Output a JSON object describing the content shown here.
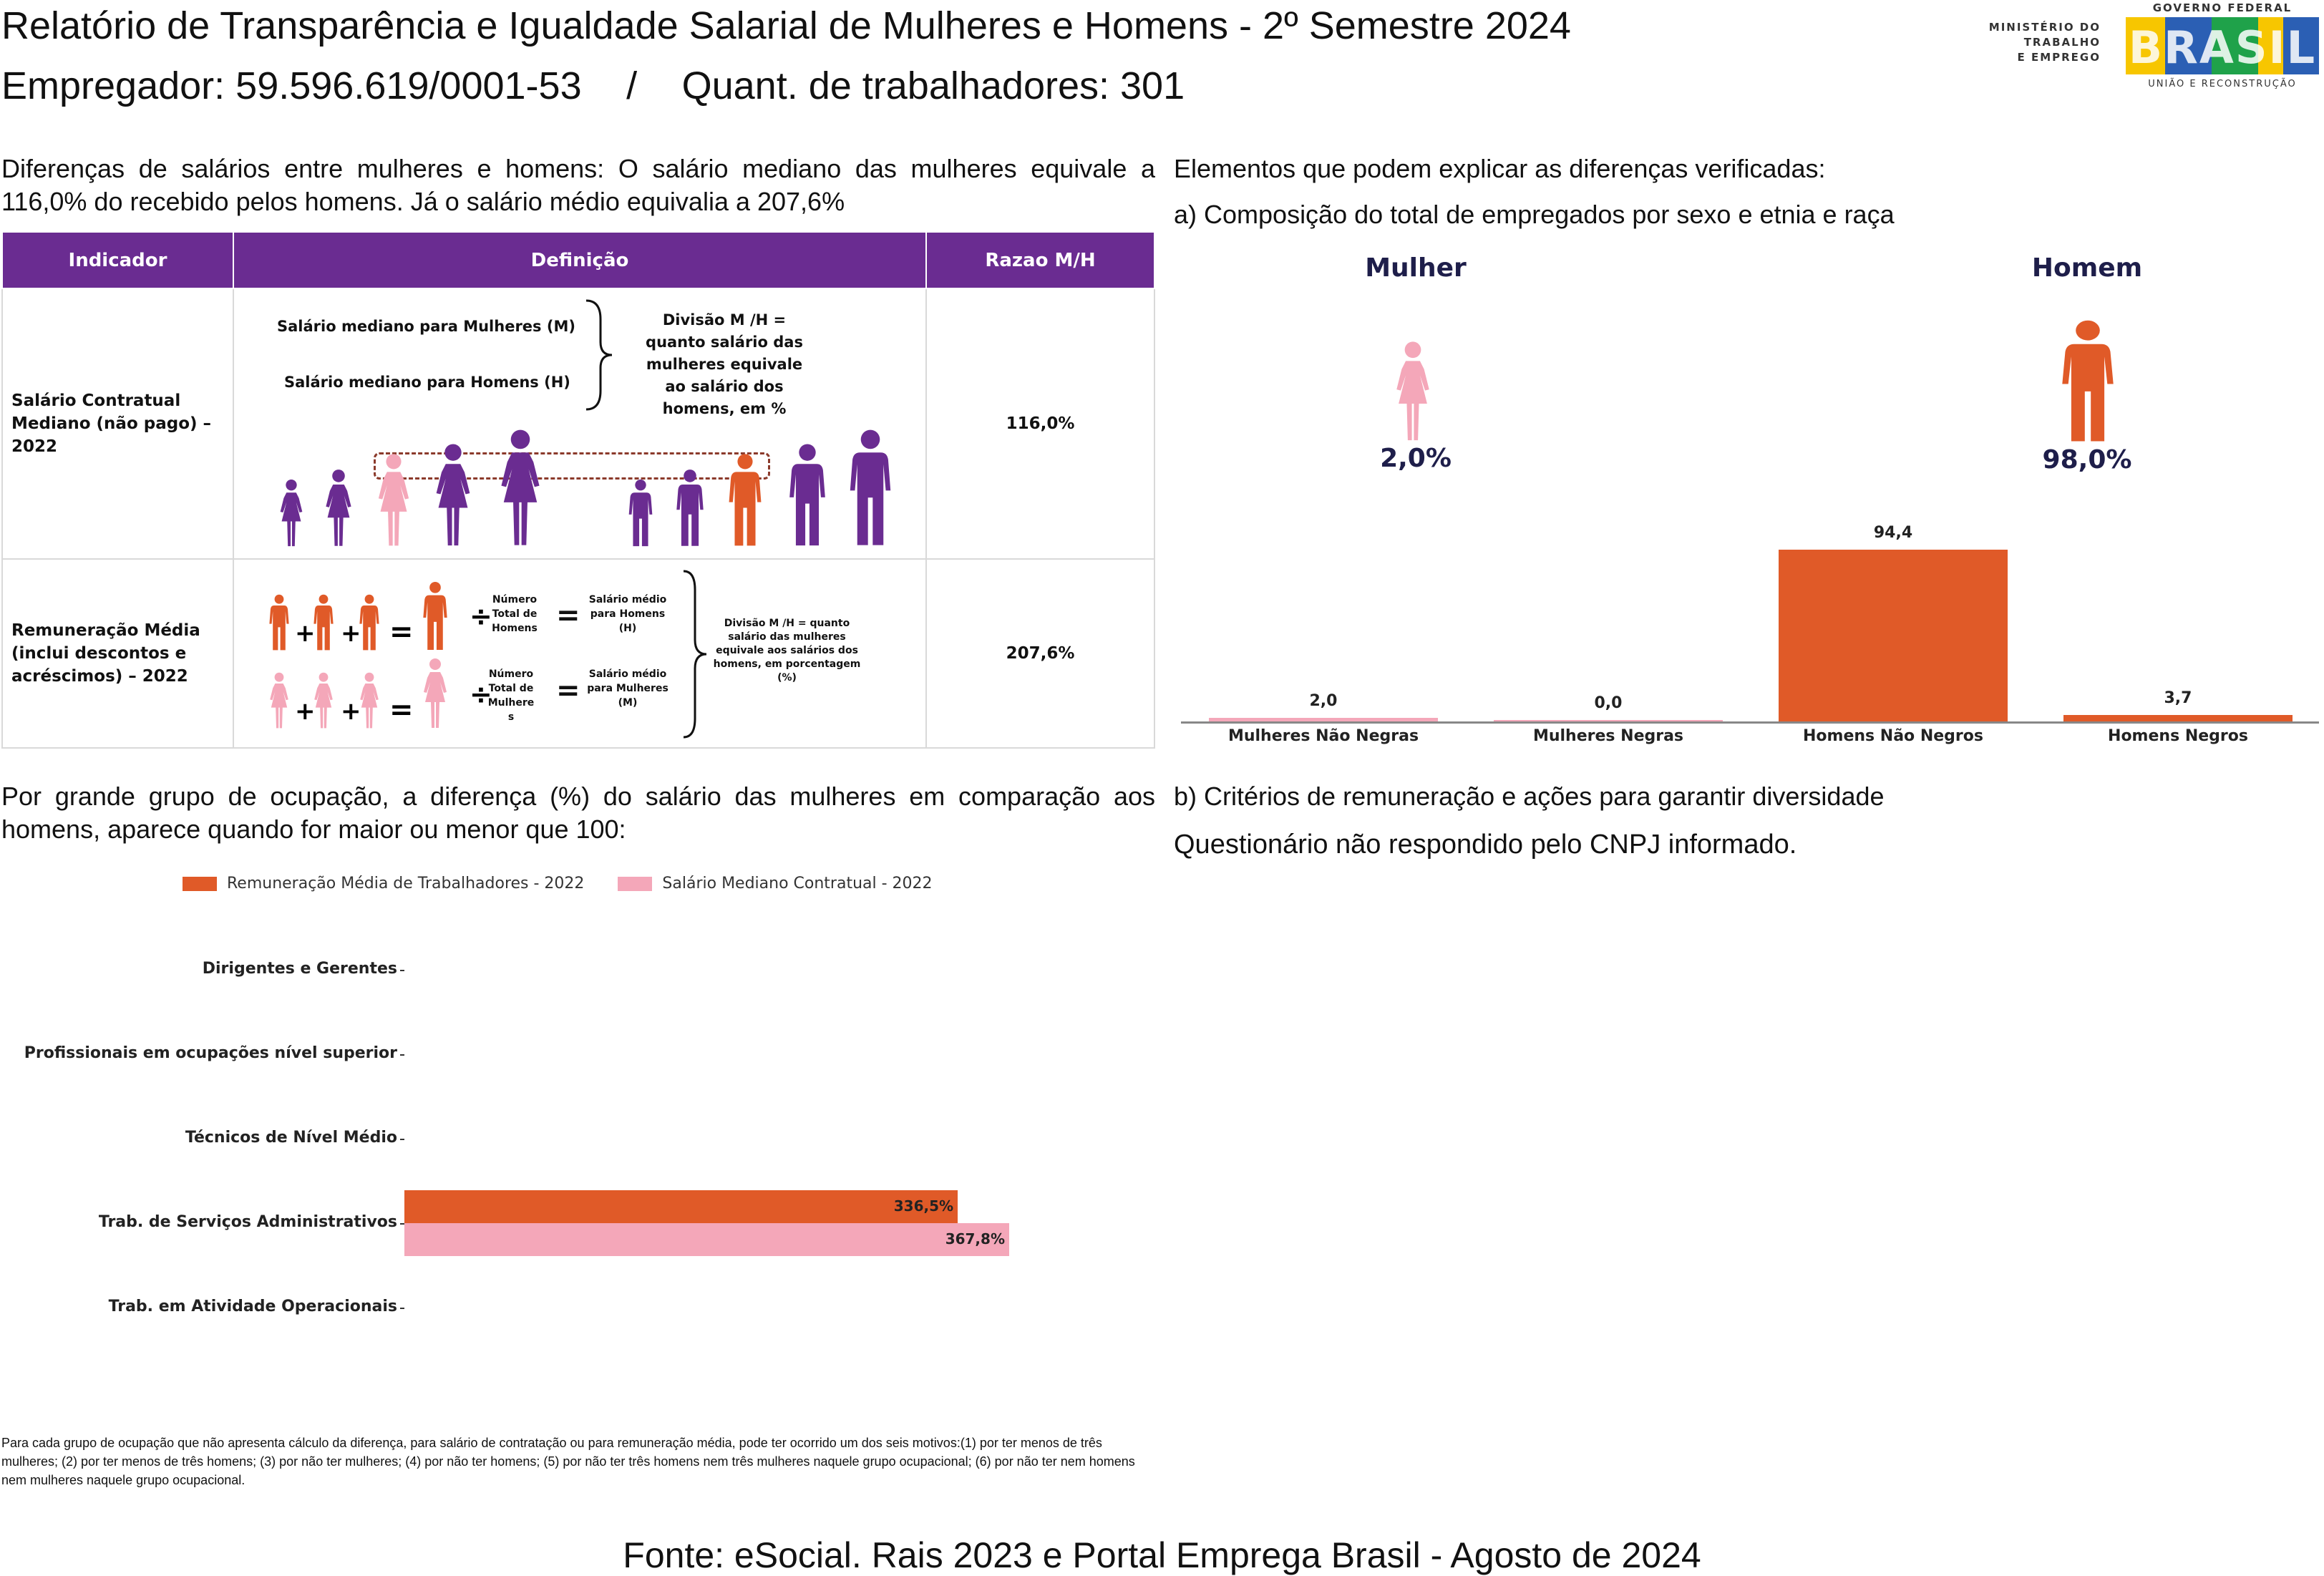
{
  "header": {
    "title": "Relatório de Transparência e Igualdade Salarial de Mulheres e Homens - 2º Semestre 2024",
    "employer_label": "Empregador: 59.596.619/0001-53",
    "separator": "/",
    "workers_label": "Quant. de trabalhadores: 301",
    "logo": {
      "ministry_line1": "MINISTÉRIO DO",
      "ministry_line2": "TRABALHO",
      "ministry_line3": "E EMPREGO",
      "gov_line": "GOVERNO FEDERAL",
      "brasil": "BRASIL",
      "slogan": "UNIÃO E RECONSTRUÇÃO"
    }
  },
  "left": {
    "intro": "Diferenças de salários entre mulheres e homens: O salário mediano das mulheres equivale a 116,0% do recebido pelos homens. Já o salário médio equivalia a 207,6%",
    "table": {
      "headers": [
        "Indicador",
        "Definição",
        "Razao M/H"
      ],
      "rows": [
        {
          "indicator": "Salário Contratual Mediano (não pago) – 2022",
          "def_women": "Salário mediano para Mulheres (M)",
          "def_men": "Salário mediano para Homens (H)",
          "def_division": "Divisão M /H = quanto salário das mulheres equivale ao salário dos homens, em %",
          "ratio": "116,0%"
        },
        {
          "indicator": "Remuneração Média (inclui descontos e acréscimos) – 2022",
          "total_men": "Número Total de Homens",
          "total_women": "Número Total de Mulheres",
          "avg_men": "Salário médio para Homens (H)",
          "avg_women": "Salário médio para Mulheres (M)",
          "def_division": "Divisão M /H = quanto salário das mulheres equivale aos salários dos homens, em porcentagem (%)",
          "ratio": "207,6%"
        }
      ]
    },
    "occupation_intro": "Por grande grupo de ocupação, a diferença (%) do salário das mulheres em comparação aos homens, aparece quando for maior ou menor que 100:",
    "footnote": "Para cada grupo de ocupação que não apresenta cálculo da diferença, para salário de contratação ou para remuneração média, pode ter ocorrido um dos seis motivos:(1) por ter menos de três mulheres; (2) por ter menos de três homens; (3) por não ter mulheres; (4) por não ter homens; (5) por não ter três homens nem três mulheres naquele grupo ocupacional; (6) por não ter nem homens nem mulheres naquele grupo ocupacional."
  },
  "right": {
    "heading": "Elementos que podem explicar as diferenças verificadas:",
    "sub_a": "a) Composição do total de empregados por sexo e etnia e raça",
    "women_label": "Mulher",
    "women_pct": "2,0%",
    "men_label": "Homem",
    "men_pct": "98,0%",
    "sub_b": "b) Critérios de remuneração e ações para garantir diversidade",
    "questionnaire": "Questionário não respondido pelo CNPJ informado."
  },
  "chart_data": [
    {
      "type": "bar",
      "categories": [
        "Mulheres Não Negras",
        "Mulheres Negras",
        "Homens Não Negros",
        "Homens Negros"
      ],
      "values": [
        2.0,
        0.0,
        94.4,
        3.7
      ],
      "value_labels": [
        "2,0",
        "0,0",
        "94,4",
        "3,7"
      ],
      "colors": [
        "#f4a7b9",
        "#f4a7b9",
        "#e05a28",
        "#e05a28"
      ],
      "ylim": [
        0,
        94.4
      ],
      "grid": false
    },
    {
      "type": "bar",
      "orientation": "horizontal",
      "categories": [
        "Dirigentes e Gerentes",
        "Profissionais em ocupações nível superior",
        "Técnicos de Nível Médio",
        "Trab. de Serviços Administrativos",
        "Trab. em Atividade Operacionais"
      ],
      "series": [
        {
          "name": "Remuneração Média de Trabalhadores - 2022",
          "color": "#e05a28",
          "values": [
            null,
            null,
            null,
            336.5,
            null
          ],
          "labels": [
            "",
            "",
            "",
            "336,5%",
            ""
          ]
        },
        {
          "name": "Salário Mediano Contratual - 2022",
          "color": "#f4a7b9",
          "values": [
            null,
            null,
            null,
            367.8,
            null
          ],
          "labels": [
            "",
            "",
            "",
            "367,8%",
            ""
          ]
        }
      ],
      "xlim": [
        0,
        367.8
      ],
      "legend": "top",
      "grid": false
    }
  ],
  "footer": {
    "source": "Fonte: eSocial. Rais 2023 e Portal Emprega Brasil - Agosto de 2024"
  }
}
